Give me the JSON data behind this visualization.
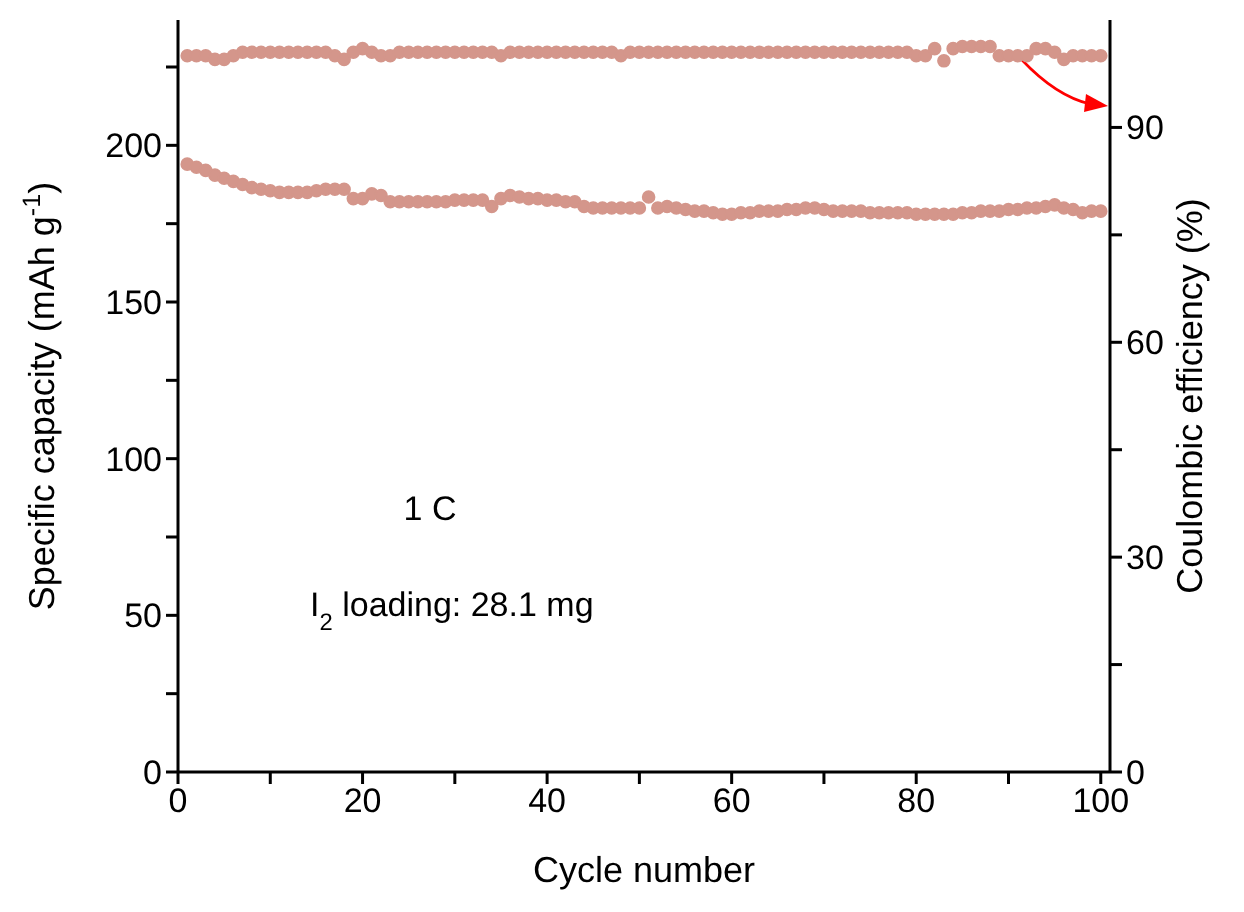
{
  "chart_data": {
    "type": "scatter",
    "xlabel": "Cycle number",
    "ylabel": "Specific capacity (mAh g$^{-1}$)",
    "y2label": "Coulombic efficiency (%)",
    "x": [
      1,
      2,
      3,
      4,
      5,
      6,
      7,
      8,
      9,
      10,
      11,
      12,
      13,
      14,
      15,
      16,
      17,
      18,
      19,
      20,
      21,
      22,
      23,
      24,
      25,
      26,
      27,
      28,
      29,
      30,
      31,
      32,
      33,
      34,
      35,
      36,
      37,
      38,
      39,
      40,
      41,
      42,
      43,
      44,
      45,
      46,
      47,
      48,
      49,
      50,
      51,
      52,
      53,
      54,
      55,
      56,
      57,
      58,
      59,
      60,
      61,
      62,
      63,
      64,
      65,
      66,
      67,
      68,
      69,
      70,
      71,
      72,
      73,
      74,
      75,
      76,
      77,
      78,
      79,
      80,
      81,
      82,
      83,
      84,
      85,
      86,
      87,
      88,
      89,
      90,
      91,
      92,
      93,
      94,
      95,
      96,
      97,
      98,
      99,
      100
    ],
    "series": [
      {
        "color": "#d4968b",
        "values": [
          194,
          193,
          192,
          190.5,
          189.5,
          188.5,
          187.5,
          186.5,
          186,
          185.5,
          185,
          185,
          185,
          185,
          185.5,
          186,
          186,
          186,
          183,
          183,
          184.5,
          184,
          182,
          182,
          182,
          182,
          182,
          182,
          182,
          182.5,
          182.5,
          182.5,
          182.5,
          180.5,
          183,
          184,
          183.5,
          183,
          183,
          182.5,
          182.5,
          182,
          182,
          180.5,
          180,
          180,
          180,
          180,
          180,
          180,
          183.5,
          180,
          180.5,
          180,
          179.5,
          179,
          179,
          178.5,
          178,
          178,
          178.5,
          178.5,
          179,
          179,
          179,
          179.5,
          179.5,
          180,
          180,
          179.5,
          179,
          179,
          179,
          179,
          178.5,
          178.5,
          178.5,
          178.5,
          178.5,
          178,
          178,
          178,
          178,
          178,
          178.5,
          178.5,
          179,
          179,
          179,
          179.5,
          179.5,
          180,
          180,
          180.5,
          181,
          180,
          179.5,
          178.5,
          179,
          179
        ]
      },
      {
        "color": "#d4968b",
        "axis": "y2",
        "values": [
          100,
          100,
          100,
          99.5,
          99.5,
          100,
          100.5,
          100.5,
          100.5,
          100.5,
          100.5,
          100.5,
          100.5,
          100.5,
          100.5,
          100.5,
          100,
          99.5,
          100.5,
          101,
          100.5,
          100,
          100,
          100.5,
          100.5,
          100.5,
          100.5,
          100.5,
          100.5,
          100.5,
          100.5,
          100.5,
          100.5,
          100.5,
          100,
          100.5,
          100.5,
          100.5,
          100.5,
          100.5,
          100.5,
          100.5,
          100.5,
          100.5,
          100.5,
          100.5,
          100.5,
          100,
          100.5,
          100.5,
          100.5,
          100.5,
          100.5,
          100.5,
          100.5,
          100.5,
          100.5,
          100.5,
          100.5,
          100.5,
          100.5,
          100.5,
          100.5,
          100.5,
          100.5,
          100.5,
          100.5,
          100.5,
          100.5,
          100.5,
          100.5,
          100.5,
          100.5,
          100.5,
          100.5,
          100.5,
          100.5,
          100.5,
          100.5,
          100,
          100,
          101,
          99.3,
          101,
          101.3,
          101.3,
          101.3,
          101.3,
          100,
          100,
          100,
          100,
          101,
          101,
          100.5,
          99.5,
          100,
          100,
          100,
          100
        ]
      }
    ],
    "xlim": [
      0,
      101
    ],
    "xticks": [
      0,
      {
        "value": 10,
        "label": null
      },
      20,
      {
        "value": 30,
        "label": null
      },
      40,
      {
        "value": 50,
        "label": null
      },
      60,
      {
        "value": 70,
        "label": null
      },
      80,
      {
        "value": 90,
        "label": null
      },
      100
    ],
    "ylim": [
      0,
      240
    ],
    "yticks": [
      0,
      {
        "value": 25,
        "label": null
      },
      50,
      {
        "value": 75,
        "label": null
      },
      100,
      {
        "value": 125,
        "label": null
      },
      150,
      {
        "value": 175,
        "label": null
      },
      200,
      {
        "value": 225,
        "label": null
      }
    ],
    "y2lim": [
      0,
      105
    ],
    "y2ticks": [
      0,
      {
        "value": 15,
        "label": null
      },
      30,
      {
        "value": 45,
        "label": null
      },
      60,
      {
        "value": 75,
        "label": null
      },
      90
    ],
    "marker": "circle",
    "annotations": [
      "1 C",
      "I$_{2}$ loading: 28.1 mg"
    ]
  }
}
